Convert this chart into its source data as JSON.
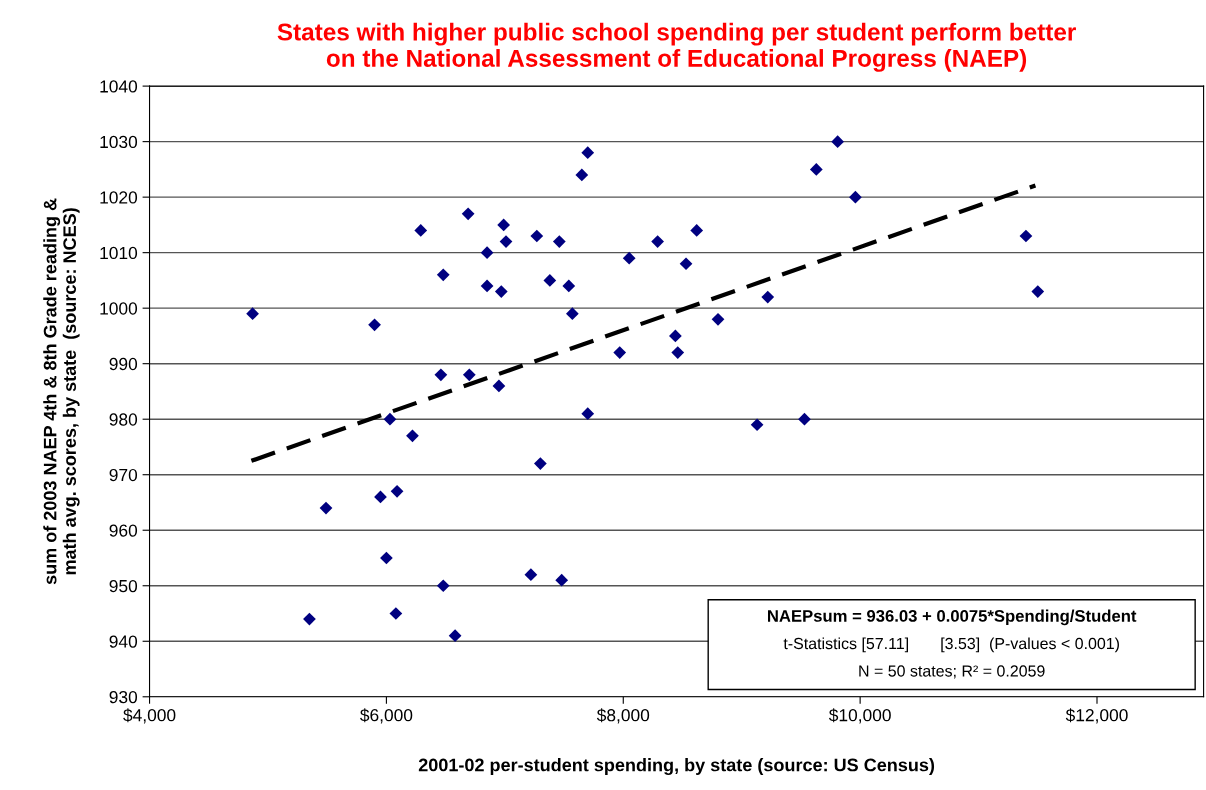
{
  "chart_data": {
    "type": "scatter",
    "title": "States with higher public school spending per student perform better\non the National Assessment of Educational Progress (NAEP)",
    "xlabel": "2001-02 per-student spending, by state (source: US Census)",
    "ylabel": "sum of 2003 NAEP 4th & 8th Grade reading &\nmath avg. scores, by state  (source: NCES)",
    "xlim": [
      4000,
      12900
    ],
    "xticks": [
      {
        "value": 4000,
        "label": "$4,000"
      },
      {
        "value": 6000,
        "label": "$6,000"
      },
      {
        "value": 8000,
        "label": "$8,000"
      },
      {
        "value": 10000,
        "label": "$10,000"
      },
      {
        "value": 12000,
        "label": "$12,000"
      }
    ],
    "ylim": [
      930,
      1040
    ],
    "yticks": [
      930,
      940,
      950,
      960,
      970,
      980,
      990,
      1000,
      1010,
      1020,
      1030,
      1040
    ],
    "grid": "y",
    "legend": false,
    "series": [
      {
        "color": "#000080",
        "marker": "diamond",
        "x": [
          7700,
          7650,
          6690,
          6290,
          6990,
          7010,
          7270,
          7460,
          8290,
          6850,
          8050,
          6480,
          6850,
          6970,
          7380,
          7540,
          4870,
          7570,
          5900,
          7970,
          6460,
          6700,
          6950,
          7700,
          6030,
          6220,
          7300,
          6090,
          5950,
          5490,
          6000,
          7220,
          7480,
          6480,
          5350,
          6080,
          6580,
          9810,
          9630,
          9960,
          8620,
          8530,
          11400,
          11500,
          9220,
          8800,
          8440,
          8460,
          9130,
          9530
        ],
        "values": [
          1028,
          1024,
          1017,
          1014,
          1015,
          1012,
          1013,
          1012,
          1012,
          1010,
          1009,
          1006,
          1004,
          1003,
          1005,
          1004,
          999,
          999,
          997,
          992,
          988,
          988,
          986,
          981,
          980,
          977,
          972,
          967,
          966,
          964,
          955,
          952,
          951,
          950,
          944,
          945,
          941,
          1030,
          1025,
          1020,
          1014,
          1008,
          1013,
          1003,
          1002,
          998,
          995,
          992,
          979,
          980
        ]
      },
      {
        "type": "line",
        "color": "#000000",
        "line_style": "dashed",
        "marker": "none",
        "x": [
          4860,
          11480
        ],
        "values": [
          972.5,
          1022.1
        ]
      }
    ],
    "annotations": [
      "NAEPsum = 936.03 + 0.0075*Spending/Student",
      "t-Statistics [57.11]       [3.53]  (P-values < 0.001)",
      "N = 50 states; R² = 0.2059"
    ]
  }
}
